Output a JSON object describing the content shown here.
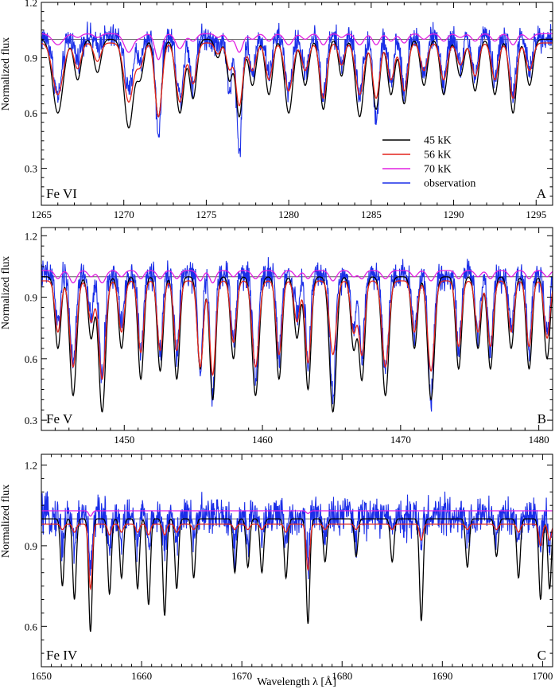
{
  "figure": {
    "xlabel": "Wavelength λ [Å]",
    "ylabel": "Normalized flux"
  },
  "chart_data": [
    {
      "type": "line",
      "id": "A",
      "ion_label": "Fe VI",
      "panel_letter": "A",
      "xlim": [
        1265,
        1296
      ],
      "ylim": [
        0.1,
        1.2
      ],
      "xticks": [
        1265,
        1270,
        1275,
        1280,
        1285,
        1290,
        1295
      ],
      "yticks": [
        0.3,
        0.6,
        0.9,
        1.2
      ],
      "ytick_labels": [
        "0.3",
        "0.6",
        "0.9",
        "1.2"
      ],
      "continuum": 1.0,
      "legend": {
        "placement": "lower-right",
        "entries": [
          "45 kK",
          "56 kK",
          "70 kK",
          "observation"
        ]
      },
      "lines": [
        {
          "center": 1266.0,
          "depths": [
            0.4,
            0.28,
            0.06,
            0.32
          ],
          "width": 0.45
        },
        {
          "center": 1267.2,
          "depths": [
            0.22,
            0.14,
            0.02,
            0.12
          ],
          "width": 0.3
        },
        {
          "center": 1268.4,
          "depths": [
            0.18,
            0.1,
            0.02,
            0.05
          ],
          "width": 0.3
        },
        {
          "center": 1270.3,
          "depths": [
            0.48,
            0.32,
            0.1,
            0.3
          ],
          "width": 0.4
        },
        {
          "center": 1271.0,
          "depths": [
            0.2,
            0.12,
            0.02,
            0.12
          ],
          "width": 0.3
        },
        {
          "center": 1272.1,
          "depths": [
            0.42,
            0.4,
            0.14,
            0.52
          ],
          "width": 0.3
        },
        {
          "center": 1273.4,
          "depths": [
            0.4,
            0.32,
            0.08,
            0.32
          ],
          "width": 0.35
        },
        {
          "center": 1274.2,
          "depths": [
            0.32,
            0.22,
            0.04,
            0.25
          ],
          "width": 0.3
        },
        {
          "center": 1275.7,
          "depths": [
            0.1,
            0.06,
            0.02,
            0.05
          ],
          "width": 0.25
        },
        {
          "center": 1276.4,
          "depths": [
            0.22,
            0.14,
            0.04,
            0.3
          ],
          "width": 0.25
        },
        {
          "center": 1277.0,
          "depths": [
            0.42,
            0.34,
            0.1,
            0.6
          ],
          "width": 0.3
        },
        {
          "center": 1277.8,
          "depths": [
            0.25,
            0.15,
            0.03,
            0.2
          ],
          "width": 0.3
        },
        {
          "center": 1278.8,
          "depths": [
            0.3,
            0.2,
            0.04,
            0.2
          ],
          "width": 0.3
        },
        {
          "center": 1280.0,
          "depths": [
            0.4,
            0.26,
            0.06,
            0.3
          ],
          "width": 0.35
        },
        {
          "center": 1281.0,
          "depths": [
            0.25,
            0.15,
            0.03,
            0.2
          ],
          "width": 0.3
        },
        {
          "center": 1282.1,
          "depths": [
            0.38,
            0.3,
            0.06,
            0.33
          ],
          "width": 0.3
        },
        {
          "center": 1283.2,
          "depths": [
            0.2,
            0.12,
            0.02,
            0.15
          ],
          "width": 0.25
        },
        {
          "center": 1284.3,
          "depths": [
            0.42,
            0.28,
            0.06,
            0.3
          ],
          "width": 0.35
        },
        {
          "center": 1285.3,
          "depths": [
            0.38,
            0.3,
            0.06,
            0.45
          ],
          "width": 0.3
        },
        {
          "center": 1286.2,
          "depths": [
            0.3,
            0.2,
            0.04,
            0.25
          ],
          "width": 0.3
        },
        {
          "center": 1287.0,
          "depths": [
            0.35,
            0.26,
            0.05,
            0.3
          ],
          "width": 0.3
        },
        {
          "center": 1288.2,
          "depths": [
            0.25,
            0.15,
            0.03,
            0.2
          ],
          "width": 0.3
        },
        {
          "center": 1289.4,
          "depths": [
            0.3,
            0.2,
            0.04,
            0.25
          ],
          "width": 0.3
        },
        {
          "center": 1290.4,
          "depths": [
            0.2,
            0.12,
            0.02,
            0.15
          ],
          "width": 0.3
        },
        {
          "center": 1291.3,
          "depths": [
            0.28,
            0.18,
            0.04,
            0.22
          ],
          "width": 0.3
        },
        {
          "center": 1292.5,
          "depths": [
            0.3,
            0.2,
            0.04,
            0.22
          ],
          "width": 0.3
        },
        {
          "center": 1293.6,
          "depths": [
            0.4,
            0.3,
            0.06,
            0.3
          ],
          "width": 0.3
        },
        {
          "center": 1294.6,
          "depths": [
            0.25,
            0.15,
            0.03,
            0.18
          ],
          "width": 0.3
        }
      ]
    },
    {
      "type": "line",
      "id": "B",
      "ion_label": "Fe V",
      "panel_letter": "B",
      "xlim": [
        1444,
        1481
      ],
      "ylim": [
        0.25,
        1.24
      ],
      "xticks": [
        1450,
        1460,
        1470,
        1480
      ],
      "yticks": [
        0.3,
        0.6,
        0.9,
        1.2
      ],
      "ytick_labels": [
        "0.3",
        "0.6",
        "0.9",
        "1.2"
      ],
      "continuum": 1.0,
      "lines": [
        {
          "center": 1445.2,
          "depths": [
            0.35,
            0.25,
            0.04,
            0.25
          ],
          "width": 0.3
        },
        {
          "center": 1446.3,
          "depths": [
            0.58,
            0.42,
            0.06,
            0.45
          ],
          "width": 0.35
        },
        {
          "center": 1447.6,
          "depths": [
            0.3,
            0.2,
            0.03,
            0.22
          ],
          "width": 0.3
        },
        {
          "center": 1448.4,
          "depths": [
            0.66,
            0.48,
            0.06,
            0.5
          ],
          "width": 0.35
        },
        {
          "center": 1449.8,
          "depths": [
            0.35,
            0.25,
            0.03,
            0.25
          ],
          "width": 0.3
        },
        {
          "center": 1451.2,
          "depths": [
            0.5,
            0.35,
            0.04,
            0.4
          ],
          "width": 0.3
        },
        {
          "center": 1452.6,
          "depths": [
            0.46,
            0.34,
            0.04,
            0.4
          ],
          "width": 0.3
        },
        {
          "center": 1453.8,
          "depths": [
            0.5,
            0.34,
            0.04,
            0.4
          ],
          "width": 0.3
        },
        {
          "center": 1455.5,
          "depths": [
            0.45,
            0.42,
            0.05,
            0.45
          ],
          "width": 0.3
        },
        {
          "center": 1456.4,
          "depths": [
            0.6,
            0.46,
            0.06,
            0.62
          ],
          "width": 0.3
        },
        {
          "center": 1457.9,
          "depths": [
            0.4,
            0.3,
            0.03,
            0.32
          ],
          "width": 0.3
        },
        {
          "center": 1459.5,
          "depths": [
            0.58,
            0.42,
            0.04,
            0.48
          ],
          "width": 0.35
        },
        {
          "center": 1461.2,
          "depths": [
            0.5,
            0.36,
            0.04,
            0.4
          ],
          "width": 0.3
        },
        {
          "center": 1462.5,
          "depths": [
            0.3,
            0.2,
            0.03,
            0.2
          ],
          "width": 0.3
        },
        {
          "center": 1463.3,
          "depths": [
            0.55,
            0.4,
            0.04,
            0.45
          ],
          "width": 0.3
        },
        {
          "center": 1465.1,
          "depths": [
            0.66,
            0.36,
            0.05,
            0.58
          ],
          "width": 0.35
        },
        {
          "center": 1466.6,
          "depths": [
            0.35,
            0.25,
            0.03,
            0.28
          ],
          "width": 0.3
        },
        {
          "center": 1467.2,
          "depths": [
            0.5,
            0.36,
            0.04,
            0.4
          ],
          "width": 0.3
        },
        {
          "center": 1468.9,
          "depths": [
            0.58,
            0.42,
            0.04,
            0.48
          ],
          "width": 0.35
        },
        {
          "center": 1471.0,
          "depths": [
            0.35,
            0.25,
            0.03,
            0.28
          ],
          "width": 0.3
        },
        {
          "center": 1472.2,
          "depths": [
            0.6,
            0.44,
            0.05,
            0.6
          ],
          "width": 0.35
        },
        {
          "center": 1474.2,
          "depths": [
            0.45,
            0.32,
            0.04,
            0.35
          ],
          "width": 0.3
        },
        {
          "center": 1475.6,
          "depths": [
            0.35,
            0.25,
            0.03,
            0.28
          ],
          "width": 0.3
        },
        {
          "center": 1476.5,
          "depths": [
            0.45,
            0.32,
            0.04,
            0.36
          ],
          "width": 0.3
        },
        {
          "center": 1478.0,
          "depths": [
            0.35,
            0.25,
            0.03,
            0.26
          ],
          "width": 0.3
        },
        {
          "center": 1479.3,
          "depths": [
            0.45,
            0.32,
            0.04,
            0.36
          ],
          "width": 0.3
        },
        {
          "center": 1480.6,
          "depths": [
            0.4,
            0.28,
            0.03,
            0.3
          ],
          "width": 0.3
        }
      ]
    },
    {
      "type": "line",
      "id": "C",
      "ion_label": "Fe IV",
      "panel_letter": "C",
      "xlim": [
        1650,
        1701
      ],
      "ylim": [
        0.45,
        1.24
      ],
      "xticks": [
        1650,
        1660,
        1670,
        1680,
        1690,
        1700
      ],
      "yticks": [
        0.6,
        0.9,
        1.2
      ],
      "ytick_labels": [
        "0.6",
        "0.9",
        "1.2"
      ],
      "continuum": 1.0,
      "lines": [
        {
          "center": 1652.1,
          "depths": [
            0.25,
            0.02,
            0.0,
            0.1
          ],
          "width": 0.25
        },
        {
          "center": 1653.3,
          "depths": [
            0.3,
            0.03,
            0.0,
            0.12
          ],
          "width": 0.25
        },
        {
          "center": 1654.9,
          "depths": [
            0.42,
            0.24,
            0.02,
            0.22
          ],
          "width": 0.25
        },
        {
          "center": 1656.8,
          "depths": [
            0.28,
            0.04,
            0.0,
            0.12
          ],
          "width": 0.25
        },
        {
          "center": 1658.0,
          "depths": [
            0.22,
            0.03,
            0.0,
            0.1
          ],
          "width": 0.25
        },
        {
          "center": 1659.6,
          "depths": [
            0.26,
            0.03,
            0.0,
            0.12
          ],
          "width": 0.25
        },
        {
          "center": 1660.7,
          "depths": [
            0.32,
            0.04,
            0.0,
            0.12
          ],
          "width": 0.25
        },
        {
          "center": 1662.3,
          "depths": [
            0.36,
            0.04,
            0.0,
            0.14
          ],
          "width": 0.25
        },
        {
          "center": 1663.5,
          "depths": [
            0.26,
            0.03,
            0.0,
            0.1
          ],
          "width": 0.25
        },
        {
          "center": 1665.2,
          "depths": [
            0.22,
            0.02,
            0.0,
            0.08
          ],
          "width": 0.25
        },
        {
          "center": 1669.3,
          "depths": [
            0.2,
            0.02,
            0.0,
            0.12
          ],
          "width": 0.25
        },
        {
          "center": 1670.6,
          "depths": [
            0.18,
            0.02,
            0.0,
            0.1
          ],
          "width": 0.25
        },
        {
          "center": 1672.0,
          "depths": [
            0.2,
            0.02,
            0.0,
            0.08
          ],
          "width": 0.25
        },
        {
          "center": 1674.4,
          "depths": [
            0.22,
            0.03,
            0.0,
            0.1
          ],
          "width": 0.25
        },
        {
          "center": 1676.6,
          "depths": [
            0.39,
            0.17,
            0.01,
            0.15
          ],
          "width": 0.25
        },
        {
          "center": 1678.3,
          "depths": [
            0.16,
            0.02,
            0.0,
            0.08
          ],
          "width": 0.25
        },
        {
          "center": 1681.4,
          "depths": [
            0.14,
            0.02,
            0.0,
            0.08
          ],
          "width": 0.25
        },
        {
          "center": 1685.0,
          "depths": [
            0.16,
            0.02,
            0.0,
            0.08
          ],
          "width": 0.25
        },
        {
          "center": 1687.9,
          "depths": [
            0.38,
            0.06,
            0.0,
            0.12
          ],
          "width": 0.25
        },
        {
          "center": 1692.5,
          "depths": [
            0.18,
            0.02,
            0.0,
            0.08
          ],
          "width": 0.25
        },
        {
          "center": 1695.4,
          "depths": [
            0.14,
            0.02,
            0.0,
            0.08
          ],
          "width": 0.25
        },
        {
          "center": 1697.6,
          "depths": [
            0.22,
            0.03,
            0.0,
            0.1
          ],
          "width": 0.25
        },
        {
          "center": 1699.8,
          "depths": [
            0.3,
            0.08,
            0.0,
            0.12
          ],
          "width": 0.25
        },
        {
          "center": 1700.7,
          "depths": [
            0.26,
            0.06,
            0.0,
            0.12
          ],
          "width": 0.25
        }
      ]
    }
  ],
  "series_style": [
    {
      "key": "45kK",
      "label": "45 kK",
      "color": "#000000"
    },
    {
      "key": "56kK",
      "label": "56 kK",
      "color": "#e3241b"
    },
    {
      "key": "70kK",
      "label": "70 kK",
      "color": "#e020e0"
    },
    {
      "key": "obs",
      "label": "observation",
      "color": "#1a2ee8"
    }
  ]
}
